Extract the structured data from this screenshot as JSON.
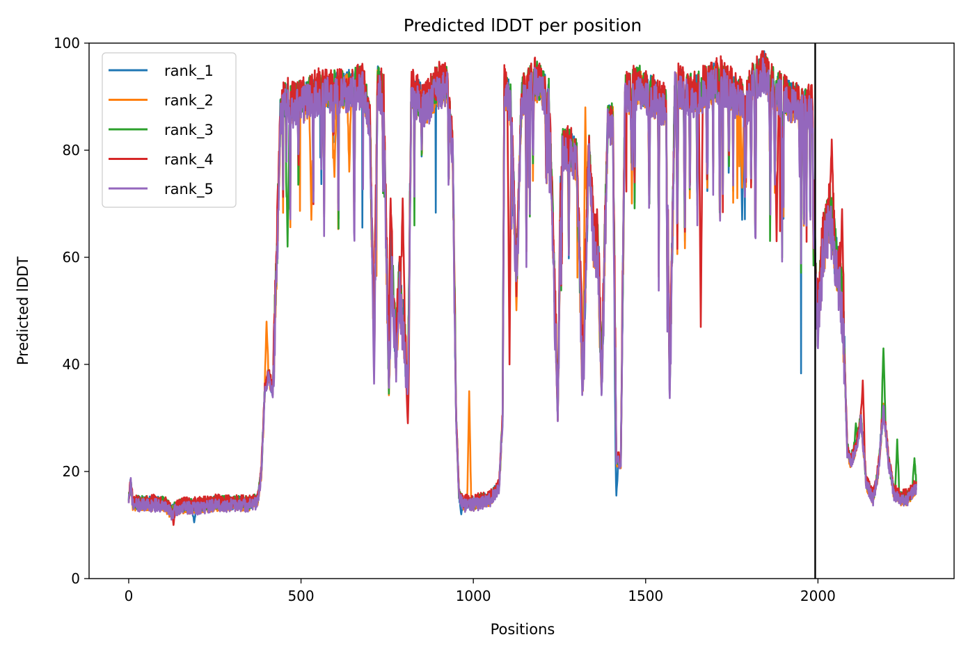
{
  "chart_data": {
    "type": "line",
    "title": "Predicted lDDT per position",
    "xlabel": "Positions",
    "ylabel": "Predicted lDDT",
    "xlim": [
      -115,
      2395
    ],
    "ylim": [
      0,
      100
    ],
    "xticks": [
      0,
      500,
      1000,
      1500,
      2000
    ],
    "yticks": [
      0,
      20,
      40,
      60,
      80,
      100
    ],
    "grid": false,
    "legend_position": "top-left",
    "vline": {
      "x": 1992,
      "color": "#000000"
    },
    "series": [
      {
        "name": "rank_1",
        "color": "#1f77b4",
        "offset": 0.3,
        "seed": 11
      },
      {
        "name": "rank_2",
        "color": "#ff7f0e",
        "offset": -0.4,
        "seed": 23
      },
      {
        "name": "rank_3",
        "color": "#2ca02c",
        "offset": 0.6,
        "seed": 37
      },
      {
        "name": "rank_4",
        "color": "#d62728",
        "offset": 1.2,
        "seed": 53
      },
      {
        "name": "rank_5",
        "color": "#9467bd",
        "offset": -0.8,
        "seed": 71
      }
    ],
    "profile": [
      [
        0,
        15
      ],
      [
        6,
        18
      ],
      [
        12,
        14
      ],
      [
        60,
        14
      ],
      [
        100,
        14
      ],
      [
        125,
        12.5
      ],
      [
        150,
        13.5
      ],
      [
        200,
        13.5
      ],
      [
        250,
        14
      ],
      [
        300,
        14
      ],
      [
        350,
        14
      ],
      [
        375,
        14.5
      ],
      [
        385,
        20
      ],
      [
        395,
        35
      ],
      [
        405,
        38
      ],
      [
        418,
        35
      ],
      [
        430,
        60
      ],
      [
        440,
        86
      ],
      [
        455,
        90
      ],
      [
        470,
        88
      ],
      [
        500,
        89
      ],
      [
        560,
        91
      ],
      [
        620,
        91
      ],
      [
        680,
        92
      ],
      [
        700,
        85
      ],
      [
        712,
        42
      ],
      [
        722,
        92
      ],
      [
        740,
        90
      ],
      [
        755,
        35
      ],
      [
        762,
        60
      ],
      [
        775,
        42
      ],
      [
        785,
        55
      ],
      [
        800,
        45
      ],
      [
        810,
        35
      ],
      [
        820,
        91
      ],
      [
        860,
        88
      ],
      [
        900,
        92
      ],
      [
        925,
        92
      ],
      [
        940,
        80
      ],
      [
        950,
        30
      ],
      [
        958,
        16
      ],
      [
        970,
        14
      ],
      [
        1000,
        14
      ],
      [
        1050,
        15
      ],
      [
        1075,
        17
      ],
      [
        1085,
        30
      ],
      [
        1090,
        92
      ],
      [
        1110,
        88
      ],
      [
        1125,
        55
      ],
      [
        1140,
        90
      ],
      [
        1180,
        93
      ],
      [
        1220,
        90
      ],
      [
        1245,
        30
      ],
      [
        1255,
        80
      ],
      [
        1280,
        80
      ],
      [
        1300,
        78
      ],
      [
        1318,
        36
      ],
      [
        1335,
        80
      ],
      [
        1350,
        62
      ],
      [
        1362,
        62
      ],
      [
        1372,
        35
      ],
      [
        1390,
        85
      ],
      [
        1405,
        85
      ],
      [
        1415,
        22
      ],
      [
        1428,
        22
      ],
      [
        1440,
        90
      ],
      [
        1480,
        92
      ],
      [
        1520,
        90
      ],
      [
        1560,
        88
      ],
      [
        1570,
        35
      ],
      [
        1585,
        92
      ],
      [
        1640,
        90
      ],
      [
        1680,
        92
      ],
      [
        1720,
        93
      ],
      [
        1760,
        90
      ],
      [
        1790,
        88
      ],
      [
        1810,
        92
      ],
      [
        1845,
        95
      ],
      [
        1860,
        92
      ],
      [
        1900,
        90
      ],
      [
        1950,
        88
      ],
      [
        1985,
        88
      ],
      [
        1993,
        55
      ],
      [
        2000,
        48
      ],
      [
        2015,
        62
      ],
      [
        2035,
        68
      ],
      [
        2050,
        60
      ],
      [
        2065,
        55
      ],
      [
        2075,
        45
      ],
      [
        2085,
        24
      ],
      [
        2095,
        22
      ],
      [
        2110,
        24
      ],
      [
        2125,
        30
      ],
      [
        2140,
        18
      ],
      [
        2160,
        15
      ],
      [
        2175,
        20
      ],
      [
        2190,
        32
      ],
      [
        2205,
        22
      ],
      [
        2220,
        16
      ],
      [
        2240,
        15
      ],
      [
        2260,
        15
      ],
      [
        2285,
        17
      ]
    ],
    "features": [
      {
        "series": "rank_2",
        "x": 400,
        "y": 48
      },
      {
        "series": "rank_2",
        "x": 988,
        "y": 35
      },
      {
        "series": "rank_2",
        "x": 530,
        "y": 67
      },
      {
        "series": "rank_2",
        "x": 640,
        "y": 76
      },
      {
        "series": "rank_2",
        "x": 597,
        "y": 75
      },
      {
        "series": "rank_2",
        "x": 1325,
        "y": 88
      },
      {
        "series": "rank_2",
        "x": 1780,
        "y": 73
      },
      {
        "series": "rank_4",
        "x": 760,
        "y": 71
      },
      {
        "series": "rank_4",
        "x": 795,
        "y": 71
      },
      {
        "series": "rank_4",
        "x": 1105,
        "y": 40
      },
      {
        "series": "rank_4",
        "x": 1660,
        "y": 47
      },
      {
        "series": "rank_4",
        "x": 1880,
        "y": 63
      },
      {
        "series": "rank_4",
        "x": 2040,
        "y": 82
      },
      {
        "series": "rank_4",
        "x": 2070,
        "y": 69
      },
      {
        "series": "rank_4",
        "x": 2130,
        "y": 37
      },
      {
        "series": "rank_4",
        "x": 130,
        "y": 10
      },
      {
        "series": "rank_4",
        "x": 810,
        "y": 29
      },
      {
        "series": "rank_1",
        "x": 1780,
        "y": 67
      },
      {
        "series": "rank_1",
        "x": 1415,
        "y": 15.5
      },
      {
        "series": "rank_1",
        "x": 965,
        "y": 12
      },
      {
        "series": "rank_1",
        "x": 190,
        "y": 10.5
      },
      {
        "series": "rank_3",
        "x": 2190,
        "y": 43
      },
      {
        "series": "rank_3",
        "x": 2230,
        "y": 26
      },
      {
        "series": "rank_3",
        "x": 2280,
        "y": 22.5
      },
      {
        "series": "rank_3",
        "x": 461,
        "y": 62
      },
      {
        "series": "rank_3",
        "x": 2110,
        "y": 29
      }
    ]
  }
}
